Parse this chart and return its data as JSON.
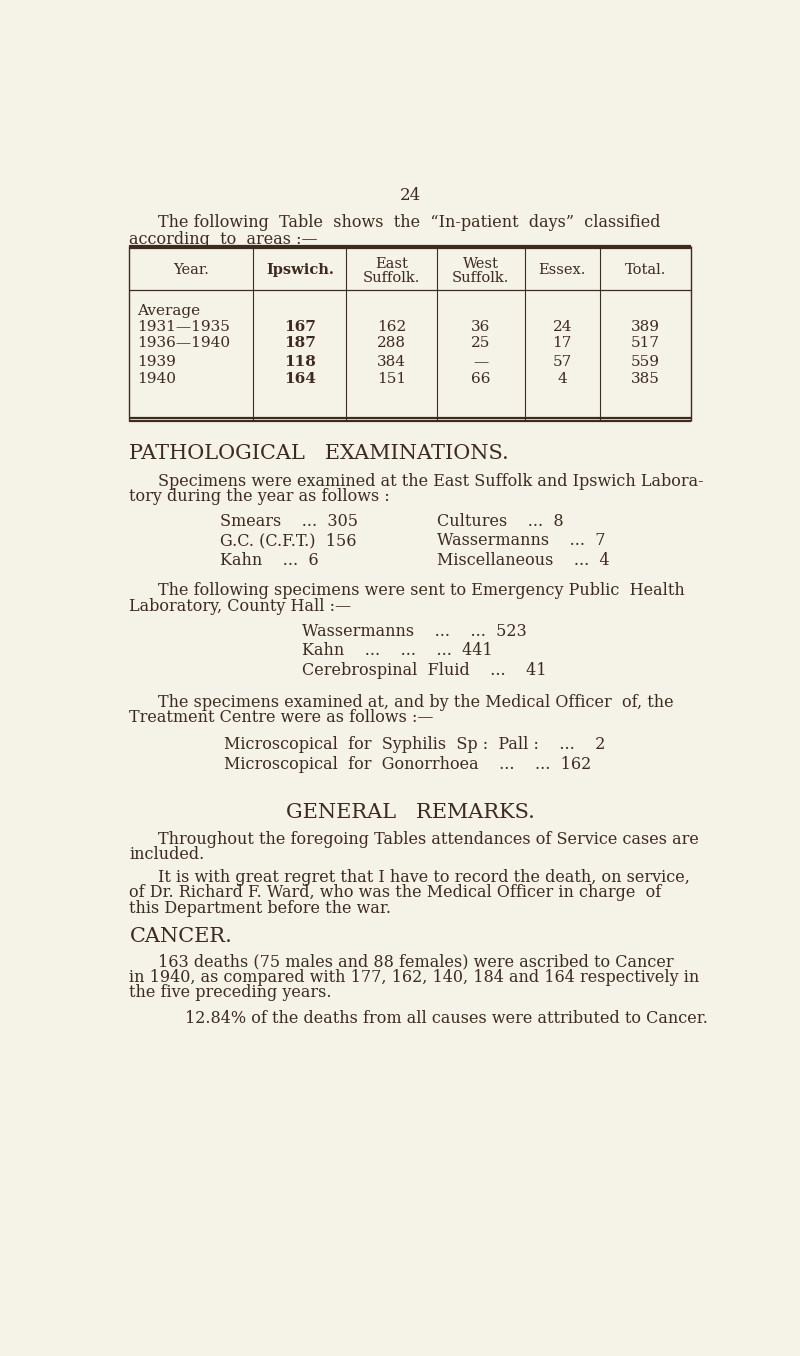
{
  "bg_color": "#f5f2e8",
  "text_color": "#3d2b1f",
  "page_number": "24",
  "table_headers": [
    "Year.",
    "Ipswich.",
    "East\nSuffolk.",
    "West\nSuffolk.",
    "Essex.",
    "Total."
  ],
  "table_rows": [
    [
      "Average",
      "",
      "",
      "",
      "",
      ""
    ],
    [
      "1931—1935",
      "167",
      "162",
      "36",
      "24",
      "389"
    ],
    [
      "1936—1940",
      "187",
      "288",
      "25",
      "17",
      "517"
    ],
    [
      "1939",
      "118",
      "384",
      "—",
      "57",
      "559"
    ],
    [
      "1940",
      "164",
      "151",
      "66",
      "4",
      "385"
    ]
  ],
  "section1_title": "PATHOLOGICAL   EXAMINATIONS.",
  "section2_title": "GENERAL   REMARKS.",
  "section3_title": "CANCER.",
  "section3_para2": "12.84% of the deaths from all causes were attributed to Cancer."
}
